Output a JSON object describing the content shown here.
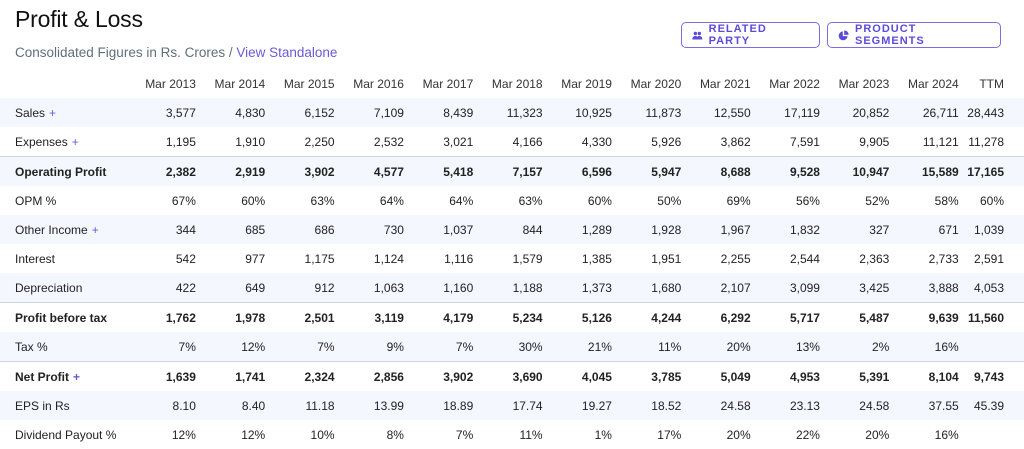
{
  "header": {
    "title": "Profit & Loss",
    "subtitle": "Consolidated Figures in Rs. Crores / ",
    "subtitle_link": "View Standalone",
    "buttons": {
      "related_party": "RELATED PARTY",
      "product_segments": "PRODUCT SEGMENTS"
    }
  },
  "table": {
    "columns": [
      "Mar 2013",
      "Mar 2014",
      "Mar 2015",
      "Mar 2016",
      "Mar 2017",
      "Mar 2018",
      "Mar 2019",
      "Mar 2020",
      "Mar 2021",
      "Mar 2022",
      "Mar 2023",
      "Mar 2024",
      "TTM"
    ],
    "rows": [
      {
        "label": "Sales",
        "plus": "+",
        "values": [
          "3,577",
          "4,830",
          "6,152",
          "7,109",
          "8,439",
          "11,323",
          "10,925",
          "11,873",
          "12,550",
          "17,119",
          "20,852",
          "26,711",
          "28,443"
        ]
      },
      {
        "label": "Expenses",
        "plus": "+",
        "values": [
          "1,195",
          "1,910",
          "2,250",
          "2,532",
          "3,021",
          "4,166",
          "4,330",
          "5,926",
          "3,862",
          "7,591",
          "9,905",
          "11,121",
          "11,278"
        ]
      },
      {
        "label": "Operating Profit",
        "values": [
          "2,382",
          "2,919",
          "3,902",
          "4,577",
          "5,418",
          "7,157",
          "6,596",
          "5,947",
          "8,688",
          "9,528",
          "10,947",
          "15,589",
          "17,165"
        ]
      },
      {
        "label": "OPM %",
        "values": [
          "67%",
          "60%",
          "63%",
          "64%",
          "64%",
          "63%",
          "60%",
          "50%",
          "69%",
          "56%",
          "52%",
          "58%",
          "60%"
        ]
      },
      {
        "label": "Other Income",
        "plus": "+",
        "values": [
          "344",
          "685",
          "686",
          "730",
          "1,037",
          "844",
          "1,289",
          "1,928",
          "1,967",
          "1,832",
          "327",
          "671",
          "1,039"
        ]
      },
      {
        "label": "Interest",
        "values": [
          "542",
          "977",
          "1,175",
          "1,124",
          "1,116",
          "1,579",
          "1,385",
          "1,951",
          "2,255",
          "2,544",
          "2,363",
          "2,733",
          "2,591"
        ]
      },
      {
        "label": "Depreciation",
        "values": [
          "422",
          "649",
          "912",
          "1,063",
          "1,160",
          "1,188",
          "1,373",
          "1,680",
          "2,107",
          "3,099",
          "3,425",
          "3,888",
          "4,053"
        ]
      },
      {
        "label": "Profit before tax",
        "values": [
          "1,762",
          "1,978",
          "2,501",
          "3,119",
          "4,179",
          "5,234",
          "5,126",
          "4,244",
          "6,292",
          "5,717",
          "5,487",
          "9,639",
          "11,560"
        ]
      },
      {
        "label": "Tax %",
        "values": [
          "7%",
          "12%",
          "7%",
          "9%",
          "7%",
          "30%",
          "21%",
          "11%",
          "20%",
          "13%",
          "2%",
          "16%",
          ""
        ]
      },
      {
        "label": "Net Profit",
        "plus": "+",
        "values": [
          "1,639",
          "1,741",
          "2,324",
          "2,856",
          "3,902",
          "3,690",
          "4,045",
          "3,785",
          "5,049",
          "4,953",
          "5,391",
          "8,104",
          "9,743"
        ]
      },
      {
        "label": "EPS in Rs",
        "values": [
          "8.10",
          "8.40",
          "11.18",
          "13.99",
          "18.89",
          "17.74",
          "19.27",
          "18.52",
          "24.58",
          "23.13",
          "24.58",
          "37.55",
          "45.39"
        ]
      },
      {
        "label": "Dividend Payout %",
        "values": [
          "12%",
          "12%",
          "10%",
          "8%",
          "7%",
          "11%",
          "1%",
          "17%",
          "20%",
          "22%",
          "20%",
          "16%",
          ""
        ]
      }
    ]
  }
}
